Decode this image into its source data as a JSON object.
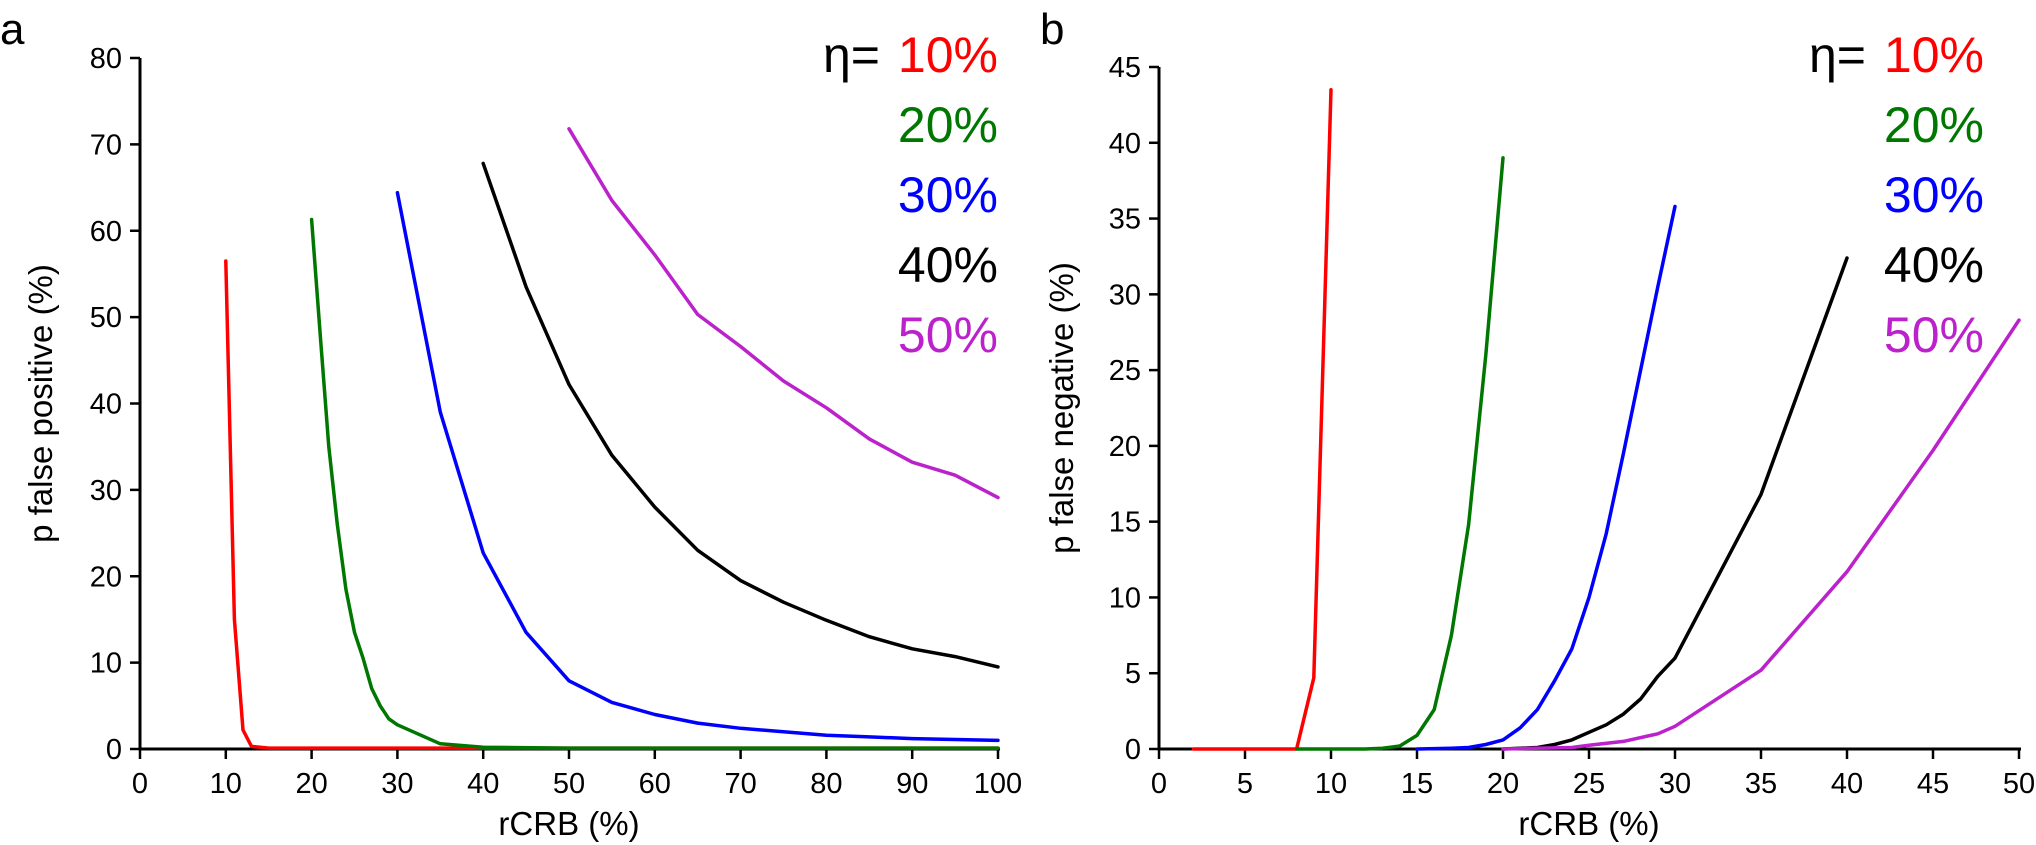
{
  "chart_data": [
    {
      "panel_label": "a",
      "type": "line",
      "xlabel": "rCRB (%)",
      "ylabel": "p false positive (%)",
      "xlim": [
        0,
        100
      ],
      "ylim": [
        0,
        80
      ],
      "xticks": [
        0,
        10,
        20,
        30,
        40,
        50,
        60,
        70,
        80,
        90,
        100
      ],
      "yticks": [
        0,
        10,
        20,
        30,
        40,
        50,
        60,
        70,
        80
      ],
      "legend_prefix": "η=",
      "series": [
        {
          "name": "10%",
          "color": "#ff0000",
          "x": [
            10,
            11,
            12,
            13,
            15,
            20,
            30,
            40,
            50,
            60,
            70,
            80,
            90,
            100
          ],
          "y": [
            56.5,
            15,
            2.2,
            0.3,
            0.1,
            0.1,
            0.1,
            0.1,
            0.1,
            0.1,
            0.1,
            0.1,
            0.1,
            0.1
          ]
        },
        {
          "name": "20%",
          "color": "#007700",
          "x": [
            20,
            21,
            22,
            23,
            24,
            25,
            26,
            27,
            28,
            29,
            30,
            35,
            40,
            50,
            60,
            70,
            80,
            90,
            100
          ],
          "y": [
            61.3,
            48,
            35,
            26,
            18.5,
            13.5,
            10.5,
            7,
            5,
            3.5,
            2.8,
            0.6,
            0.2,
            0.1,
            0.1,
            0.1,
            0.1,
            0.1,
            0.1
          ]
        },
        {
          "name": "30%",
          "color": "#0000ff",
          "x": [
            30,
            35,
            40,
            45,
            50,
            55,
            60,
            65,
            70,
            75,
            80,
            85,
            90,
            95,
            100
          ],
          "y": [
            64.4,
            39,
            22.7,
            13.5,
            7.9,
            5.4,
            4,
            3,
            2.4,
            2,
            1.6,
            1.4,
            1.2,
            1.1,
            1
          ],
          "values_note": ""
        },
        {
          "name": "40%",
          "color": "#000000",
          "x": [
            40,
            45,
            50,
            55,
            60,
            65,
            70,
            75,
            80,
            85,
            90,
            95,
            100
          ],
          "y": [
            67.8,
            53.5,
            42.2,
            34,
            28,
            23,
            19.5,
            17,
            14.9,
            13,
            11.6,
            10.7,
            9.5
          ]
        },
        {
          "name": "50%",
          "color": "#bb22cc",
          "x": [
            50,
            55,
            60,
            65,
            70,
            75,
            80,
            85,
            90,
            95,
            100
          ],
          "y": [
            71.8,
            63.5,
            57.2,
            50.3,
            46.6,
            42.6,
            39.5,
            35.9,
            33.2,
            31.7,
            29.1
          ]
        }
      ]
    },
    {
      "panel_label": "b",
      "type": "line",
      "xlabel": "rCRB (%)",
      "ylabel": "p false negative (%)",
      "xlim": [
        0,
        50
      ],
      "ylim": [
        0,
        45
      ],
      "xticks": [
        0,
        5,
        10,
        15,
        20,
        25,
        30,
        35,
        40,
        45,
        50
      ],
      "yticks": [
        0,
        5,
        10,
        15,
        20,
        25,
        30,
        35,
        40,
        45
      ],
      "legend_prefix": "η=",
      "series": [
        {
          "name": "10%",
          "color": "#ff0000",
          "x": [
            2,
            4,
            6,
            8,
            9,
            10
          ],
          "y": [
            0,
            0,
            0,
            0,
            4.7,
            43.5
          ]
        },
        {
          "name": "20%",
          "color": "#007700",
          "x": [
            8,
            10,
            12,
            13,
            14,
            15,
            16,
            17,
            18,
            19,
            20
          ],
          "y": [
            0,
            0,
            0,
            0.05,
            0.2,
            0.9,
            2.6,
            7.5,
            14.8,
            26,
            39
          ]
        },
        {
          "name": "30%",
          "color": "#0000ff",
          "x": [
            15,
            17,
            18,
            19,
            20,
            21,
            22,
            23,
            24,
            25,
            26,
            27,
            28,
            29,
            30
          ],
          "y": [
            0,
            0.05,
            0.1,
            0.3,
            0.6,
            1.4,
            2.6,
            4.5,
            6.6,
            10,
            14.2,
            19.5,
            25,
            30.5,
            35.8
          ]
        },
        {
          "name": "40%",
          "color": "#000000",
          "x": [
            20,
            22,
            23,
            24,
            25,
            26,
            27,
            28,
            29,
            30,
            35,
            40
          ],
          "y": [
            0,
            0.1,
            0.3,
            0.6,
            1.1,
            1.6,
            2.3,
            3.3,
            4.8,
            6,
            16.8,
            32.4
          ]
        },
        {
          "name": "50%",
          "color": "#bb22cc",
          "x": [
            20,
            24,
            25,
            27,
            29,
            30,
            35,
            40,
            45,
            50
          ],
          "y": [
            0,
            0.1,
            0.25,
            0.5,
            1,
            1.5,
            5.2,
            11.7,
            19.7,
            28.3
          ]
        }
      ]
    }
  ]
}
